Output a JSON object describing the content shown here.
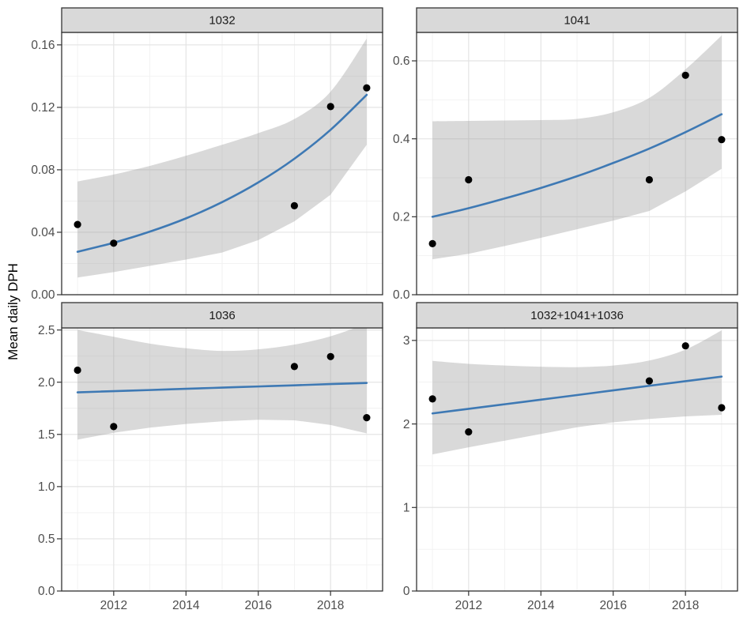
{
  "chart_data": {
    "type": "scatter",
    "title": "",
    "xlabel": "",
    "ylabel": "Mean daily DPH",
    "legend": "none",
    "grid": "on",
    "xlim": [
      2010.56,
      2019.44
    ],
    "x_ticks": {
      "values": [
        2012,
        2014,
        2016,
        2018
      ],
      "labels": [
        "2012",
        "2014",
        "2016",
        "2018"
      ]
    },
    "x_minor": [
      2011,
      2013,
      2015,
      2017,
      2019
    ],
    "style": {
      "smooth_line_color": "#3E79B4",
      "ribbon_color": "#999999",
      "ribbon_opacity": 0.37,
      "point_color": "#000000",
      "point_radius": 4.6,
      "panel_border_color": "#333333",
      "strip_bg_color": "#d9d9d9",
      "grid_major_color": "#e4e4e4",
      "grid_minor_color": "#f1f1f1",
      "panel_bg_color": "#ffffff"
    },
    "facets": [
      {
        "label": "1032",
        "row": 0,
        "col": 0,
        "ylim": [
          0,
          0.168
        ],
        "y_ticks": {
          "values": [
            0.0,
            0.04,
            0.08,
            0.12,
            0.16
          ],
          "labels": [
            "0.00",
            "0.04",
            "0.08",
            "0.12",
            "0.16"
          ]
        },
        "y_minor": [
          0.02,
          0.06,
          0.1,
          0.14
        ],
        "points": {
          "x": [
            2011,
            2012,
            2017,
            2018,
            2019
          ],
          "y": [
            0.045,
            0.033,
            0.057,
            0.1205,
            0.1325
          ]
        },
        "smooth": {
          "x": [
            2011,
            2012,
            2013,
            2014,
            2015,
            2016,
            2017,
            2018,
            2019
          ],
          "y": [
            0.0275,
            0.0333,
            0.0404,
            0.0489,
            0.0593,
            0.0719,
            0.0871,
            0.1056,
            0.128
          ]
        },
        "ribbon": {
          "x": [
            2011,
            2012,
            2013,
            2014,
            2015,
            2016,
            2017,
            2018,
            2019
          ],
          "upper": [
            0.0725,
            0.077,
            0.0825,
            0.089,
            0.096,
            0.1035,
            0.1125,
            0.13,
            0.164
          ],
          "lower": [
            0.011,
            0.0145,
            0.0185,
            0.0225,
            0.027,
            0.035,
            0.047,
            0.064,
            0.096
          ]
        }
      },
      {
        "label": "1041",
        "row": 0,
        "col": 1,
        "ylim": [
          0,
          0.673
        ],
        "y_ticks": {
          "values": [
            0.0,
            0.2,
            0.4,
            0.6
          ],
          "labels": [
            "0.0",
            "0.2",
            "0.4",
            "0.6"
          ]
        },
        "y_minor": [
          0.1,
          0.3,
          0.5
        ],
        "points": {
          "x": [
            2011,
            2012,
            2017,
            2018,
            2019
          ],
          "y": [
            0.131,
            0.295,
            0.295,
            0.563,
            0.398
          ]
        },
        "smooth": {
          "x": [
            2011,
            2012,
            2013,
            2014,
            2015,
            2016,
            2017,
            2018,
            2019
          ],
          "y": [
            0.2,
            0.222,
            0.247,
            0.274,
            0.304,
            0.338,
            0.375,
            0.417,
            0.463
          ]
        },
        "ribbon": {
          "x": [
            2011,
            2012,
            2013,
            2014,
            2015,
            2016,
            2017,
            2018,
            2019
          ],
          "upper": [
            0.445,
            0.446,
            0.447,
            0.448,
            0.451,
            0.468,
            0.505,
            0.578,
            0.665
          ],
          "lower": [
            0.091,
            0.105,
            0.125,
            0.146,
            0.168,
            0.19,
            0.215,
            0.265,
            0.323
          ]
        }
      },
      {
        "label": "1036",
        "row": 1,
        "col": 0,
        "ylim": [
          0,
          2.52
        ],
        "y_ticks": {
          "values": [
            0.0,
            0.5,
            1.0,
            1.5,
            2.0,
            2.5
          ],
          "labels": [
            "0.0",
            "0.5",
            "1.0",
            "1.5",
            "2.0",
            "2.5"
          ]
        },
        "y_minor": [
          0.25,
          0.75,
          1.25,
          1.75,
          2.25
        ],
        "points": {
          "x": [
            2011,
            2012,
            2017,
            2018,
            2019
          ],
          "y": [
            2.115,
            1.575,
            2.15,
            2.245,
            1.66
          ]
        },
        "smooth": {
          "x": [
            2011,
            2012,
            2013,
            2014,
            2015,
            2016,
            2017,
            2018,
            2019
          ],
          "y": [
            1.903,
            1.914,
            1.925,
            1.937,
            1.948,
            1.959,
            1.97,
            1.982,
            1.993
          ]
        },
        "ribbon": {
          "x": [
            2011,
            2012,
            2013,
            2014,
            2015,
            2016,
            2017,
            2018,
            2019
          ],
          "upper": [
            2.5,
            2.435,
            2.37,
            2.325,
            2.3,
            2.315,
            2.36,
            2.44,
            2.56
          ],
          "lower": [
            1.45,
            1.515,
            1.565,
            1.6,
            1.625,
            1.64,
            1.635,
            1.59,
            1.51
          ]
        }
      },
      {
        "label": "1032+1041+1036",
        "row": 1,
        "col": 1,
        "ylim": [
          0,
          3.15
        ],
        "y_ticks": {
          "values": [
            0,
            1,
            2,
            3
          ],
          "labels": [
            "0",
            "1",
            "2",
            "3"
          ]
        },
        "y_minor": [
          0.5,
          1.5,
          2.5
        ],
        "points": {
          "x": [
            2011,
            2012,
            2017,
            2018,
            2019
          ],
          "y": [
            2.3,
            1.905,
            2.515,
            2.935,
            2.195
          ]
        },
        "smooth": {
          "x": [
            2011,
            2012,
            2013,
            2014,
            2015,
            2016,
            2017,
            2018,
            2019
          ],
          "y": [
            2.126,
            2.181,
            2.236,
            2.291,
            2.346,
            2.402,
            2.457,
            2.512,
            2.567
          ]
        },
        "ribbon": {
          "x": [
            2011,
            2012,
            2013,
            2014,
            2015,
            2016,
            2017,
            2018,
            2019
          ],
          "upper": [
            2.755,
            2.72,
            2.7,
            2.685,
            2.68,
            2.7,
            2.76,
            2.89,
            3.12
          ],
          "lower": [
            1.635,
            1.72,
            1.8,
            1.88,
            1.96,
            2.02,
            2.06,
            2.09,
            2.11
          ]
        }
      }
    ]
  }
}
